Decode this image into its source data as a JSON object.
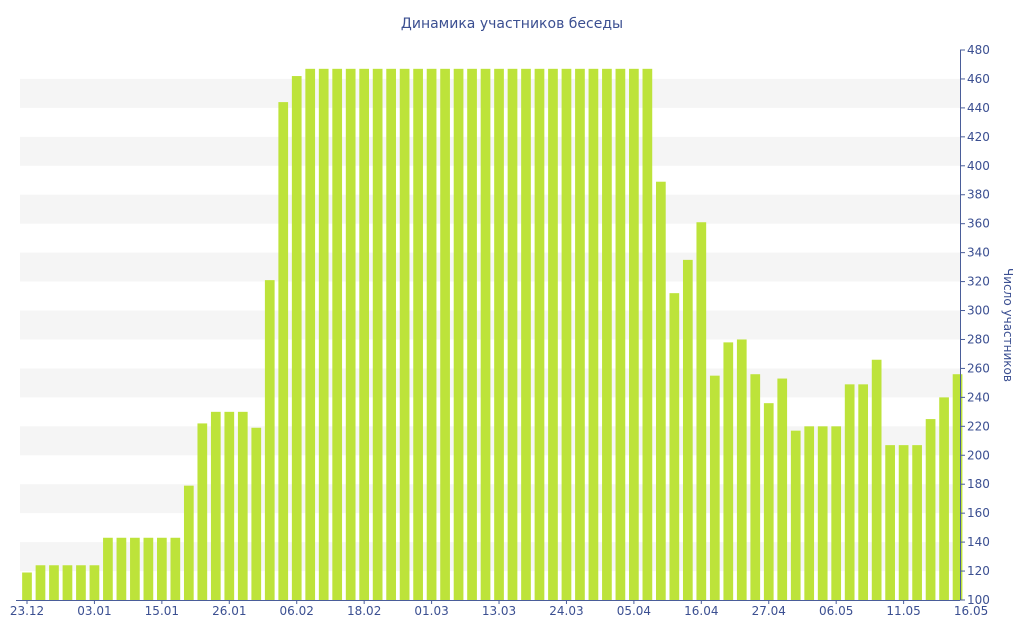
{
  "chart_data": {
    "type": "bar",
    "title": "Динамика участников беседы",
    "ylabel": "Число участников",
    "xlabel": "",
    "ylim": [
      100,
      480
    ],
    "ytick_step": 20,
    "y_axis_side": "right",
    "grid": "alternating horizontal bands",
    "legend": "none",
    "x_tick_labels": [
      {
        "label": "23.12",
        "index": 0
      },
      {
        "label": "03.01",
        "index": 5
      },
      {
        "label": "15.01",
        "index": 10
      },
      {
        "label": "26.01",
        "index": 15
      },
      {
        "label": "06.02",
        "index": 20
      },
      {
        "label": "18.02",
        "index": 25
      },
      {
        "label": "01.03",
        "index": 30
      },
      {
        "label": "13.03",
        "index": 35
      },
      {
        "label": "24.03",
        "index": 40
      },
      {
        "label": "05.04",
        "index": 45
      },
      {
        "label": "16.04",
        "index": 50
      },
      {
        "label": "27.04",
        "index": 55
      },
      {
        "label": "06.05",
        "index": 60
      },
      {
        "label": "11.05",
        "index": 65
      },
      {
        "label": "16.05",
        "index": 70
      }
    ],
    "values": [
      119,
      124,
      124,
      124,
      124,
      124,
      143,
      143,
      143,
      143,
      143,
      143,
      179,
      222,
      230,
      230,
      230,
      219,
      321,
      444,
      462,
      467,
      467,
      467,
      467,
      467,
      467,
      467,
      467,
      467,
      467,
      467,
      467,
      467,
      467,
      467,
      467,
      467,
      467,
      467,
      467,
      467,
      467,
      467,
      467,
      467,
      467,
      389,
      312,
      335,
      361,
      255,
      278,
      280,
      256,
      236,
      253,
      217,
      220,
      220,
      220,
      249,
      249,
      266,
      207,
      207,
      207,
      225,
      240,
      256
    ]
  },
  "colors": {
    "bar": "#bde33a",
    "band": "#f5f5f5",
    "text": "#3b4f91",
    "axis": "#4a5d99"
  }
}
